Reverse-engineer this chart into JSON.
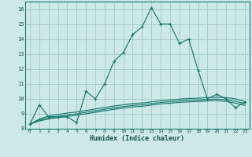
{
  "title": "",
  "xlabel": "Humidex (Indice chaleur)",
  "background_color": "#cce8e8",
  "grid_color": "#aacccc",
  "line_color": "#1a7a6e",
  "xlim": [
    -0.5,
    23.5
  ],
  "ylim": [
    8.0,
    16.5
  ],
  "yticks": [
    8,
    9,
    10,
    11,
    12,
    13,
    14,
    15,
    16
  ],
  "xticks": [
    0,
    1,
    2,
    3,
    4,
    5,
    6,
    7,
    8,
    9,
    10,
    11,
    12,
    13,
    14,
    15,
    16,
    17,
    18,
    19,
    20,
    21,
    22,
    23
  ],
  "main_line": [
    8.3,
    9.6,
    8.8,
    8.8,
    8.8,
    8.4,
    10.5,
    10.0,
    11.0,
    12.5,
    13.1,
    14.3,
    14.8,
    16.1,
    15.0,
    15.0,
    13.7,
    14.0,
    11.9,
    10.0,
    10.3,
    10.0,
    9.4,
    9.8
  ],
  "flat_lines": [
    [
      8.3,
      8.65,
      8.85,
      8.95,
      9.05,
      9.12,
      9.22,
      9.32,
      9.42,
      9.52,
      9.6,
      9.68,
      9.72,
      9.8,
      9.88,
      9.92,
      9.98,
      10.02,
      10.04,
      10.08,
      10.1,
      10.08,
      10.0,
      9.82
    ],
    [
      8.3,
      8.58,
      8.73,
      8.83,
      8.92,
      9.0,
      9.1,
      9.2,
      9.3,
      9.4,
      9.48,
      9.56,
      9.6,
      9.68,
      9.76,
      9.8,
      9.86,
      9.9,
      9.92,
      9.96,
      9.98,
      9.94,
      9.84,
      9.68
    ],
    [
      8.3,
      8.52,
      8.65,
      8.74,
      8.83,
      8.9,
      9.0,
      9.1,
      9.2,
      9.3,
      9.38,
      9.46,
      9.5,
      9.58,
      9.66,
      9.7,
      9.76,
      9.8,
      9.82,
      9.86,
      9.88,
      9.82,
      9.72,
      9.56
    ]
  ]
}
